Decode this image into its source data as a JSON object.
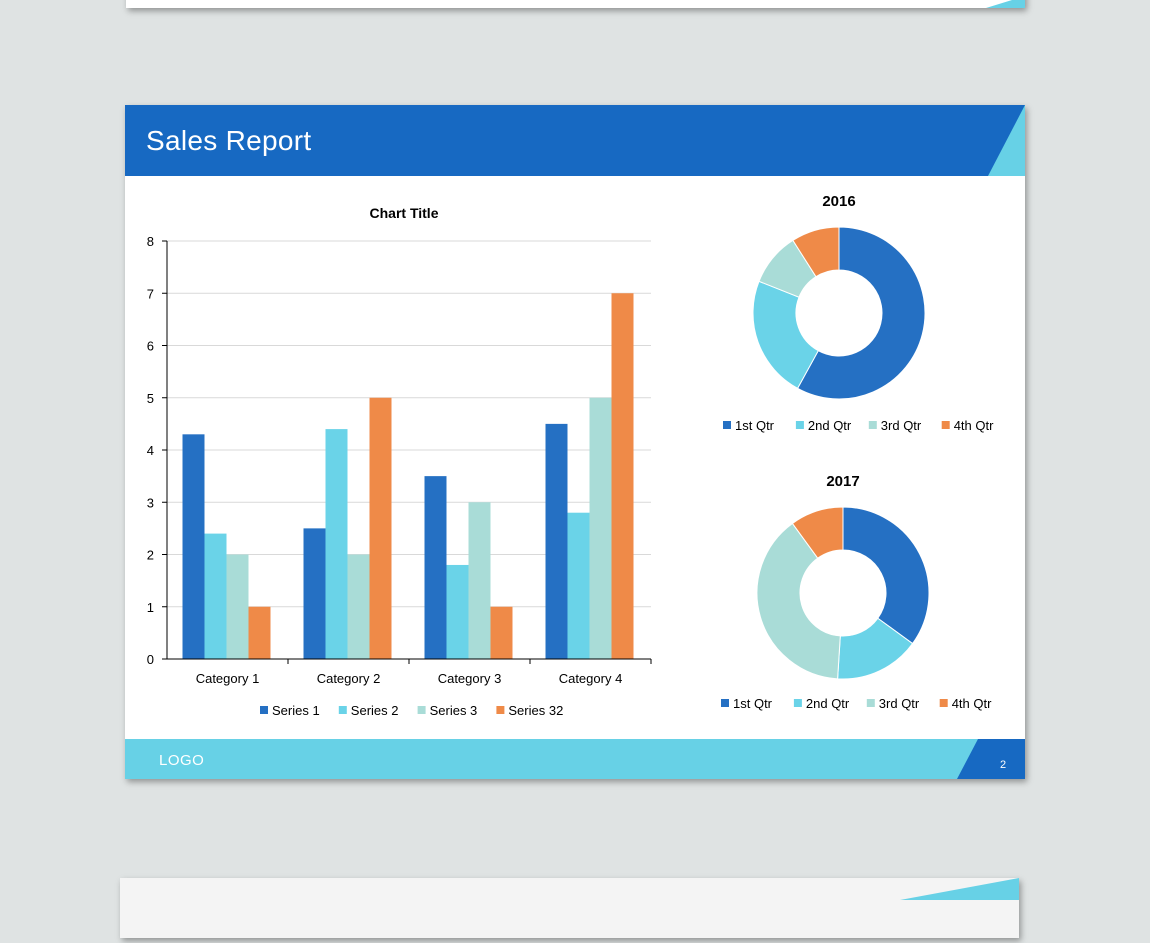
{
  "slide": {
    "title": "Sales Report",
    "logo": "LOGO",
    "page_number": "2"
  },
  "colors": {
    "primary_blue": "#1769c2",
    "accent_cyan": "#67d1e6",
    "series1": "#2570c3",
    "series2": "#6ad3e8",
    "series3": "#a9dcd7",
    "series4": "#ef8a48"
  },
  "chart_data": [
    {
      "type": "bar",
      "title": "Chart Title",
      "categories": [
        "Category 1",
        "Category 2",
        "Category 3",
        "Category 4"
      ],
      "series": [
        {
          "name": "Series 1",
          "values": [
            4.3,
            2.5,
            3.5,
            4.5
          ]
        },
        {
          "name": "Series 2",
          "values": [
            2.4,
            4.4,
            1.8,
            2.8
          ]
        },
        {
          "name": "Series 3",
          "values": [
            2,
            2,
            3,
            5
          ]
        },
        {
          "name": "Series 32",
          "values": [
            1,
            5,
            1,
            7
          ]
        }
      ],
      "ylim": [
        0,
        8
      ],
      "yticks": [
        0,
        1,
        2,
        3,
        4,
        5,
        6,
        7,
        8
      ],
      "grid": true,
      "legend": "bottom"
    },
    {
      "type": "pie",
      "title": "2016",
      "labels": [
        "1st Qtr",
        "2nd Qtr",
        "3rd Qtr",
        "4th Qtr"
      ],
      "values": [
        58,
        23,
        10,
        9
      ],
      "legend": "bottom"
    },
    {
      "type": "pie",
      "title": "2017",
      "labels": [
        "1st Qtr",
        "2nd Qtr",
        "3rd Qtr",
        "4th Qtr"
      ],
      "values": [
        35,
        16,
        39,
        10
      ],
      "legend": "bottom"
    }
  ]
}
